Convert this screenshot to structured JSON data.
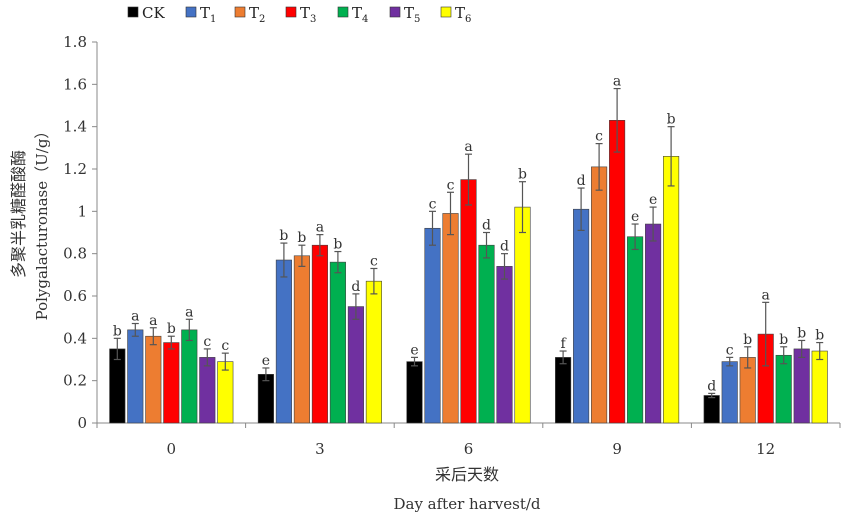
{
  "chart_data": {
    "type": "bar",
    "categories": [
      "0",
      "3",
      "6",
      "9",
      "12"
    ],
    "xlabel_zh": "采后天数",
    "xlabel_en": "Day after harvest/d",
    "ylabel_zh": "多聚半乳糖醛酸酶",
    "ylabel_en": "Polygalacturonase（U/g）",
    "ylim": [
      0,
      1.8
    ],
    "yticks": [
      "0",
      "0.2",
      "0.4",
      "0.6",
      "0.8",
      "1",
      "1.2",
      "1.4",
      "1.6",
      "1.8"
    ],
    "legend_position": "top",
    "grid": false,
    "series": [
      {
        "name": "CK",
        "sub": "",
        "color": "#000000",
        "values": [
          0.35,
          0.23,
          0.29,
          0.31,
          0.13
        ],
        "errors": [
          0.05,
          0.03,
          0.02,
          0.03,
          0.01
        ],
        "labels": [
          "b",
          "e",
          "e",
          "f",
          "d"
        ]
      },
      {
        "name": "T",
        "sub": "1",
        "color": "#4472C4",
        "values": [
          0.44,
          0.77,
          0.92,
          1.01,
          0.29
        ],
        "errors": [
          0.03,
          0.08,
          0.08,
          0.1,
          0.02
        ],
        "labels": [
          "a",
          "b",
          "c",
          "d",
          "c"
        ]
      },
      {
        "name": "T",
        "sub": "2",
        "color": "#ED7D31",
        "values": [
          0.41,
          0.79,
          0.99,
          1.21,
          0.31
        ],
        "errors": [
          0.04,
          0.05,
          0.1,
          0.11,
          0.05
        ],
        "labels": [
          "a",
          "b",
          "c",
          "c",
          "b"
        ]
      },
      {
        "name": "T",
        "sub": "3",
        "color": "#FF0000",
        "values": [
          0.38,
          0.84,
          1.15,
          1.43,
          0.42
        ],
        "errors": [
          0.03,
          0.05,
          0.12,
          0.15,
          0.15
        ],
        "labels": [
          "b",
          "a",
          "a",
          "a",
          "a"
        ]
      },
      {
        "name": "T",
        "sub": "4",
        "color": "#00B050",
        "values": [
          0.44,
          0.76,
          0.84,
          0.88,
          0.32
        ],
        "errors": [
          0.05,
          0.05,
          0.06,
          0.06,
          0.04
        ],
        "labels": [
          "a",
          "b",
          "d",
          "e",
          "b"
        ]
      },
      {
        "name": "T",
        "sub": "5",
        "color": "#7030A0",
        "values": [
          0.31,
          0.55,
          0.74,
          0.94,
          0.35
        ],
        "errors": [
          0.04,
          0.06,
          0.06,
          0.08,
          0.04
        ],
        "labels": [
          "c",
          "d",
          "d",
          "e",
          "b"
        ]
      },
      {
        "name": "T",
        "sub": "6",
        "color": "#FFFF00",
        "values": [
          0.29,
          0.67,
          1.02,
          1.26,
          0.34
        ],
        "errors": [
          0.04,
          0.06,
          0.12,
          0.14,
          0.04
        ],
        "labels": [
          "c",
          "c",
          "b",
          "b",
          "b"
        ]
      }
    ]
  }
}
